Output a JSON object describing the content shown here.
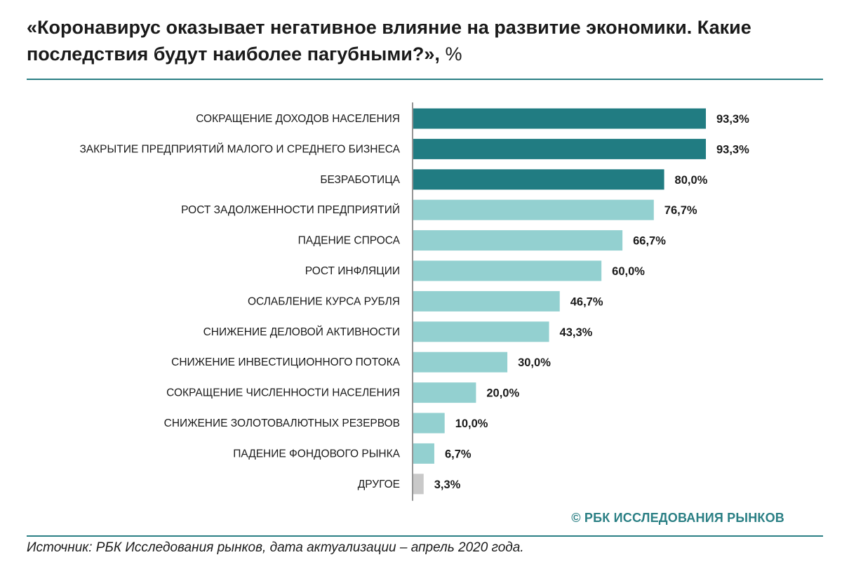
{
  "header": {
    "title": "«Коронавирус оказывает негативное влияние на развитие экономики. Какие последствия будут наиболее пагубными?»,",
    "unit": "%"
  },
  "chart_data": {
    "type": "bar",
    "orientation": "horizontal",
    "title": "«Коронавирус оказывает негативное влияние на развитие экономики. Какие последствия будут наиболее пагубными?», %",
    "xlim": [
      0,
      100
    ],
    "grid": false,
    "categories": [
      "СОКРАЩЕНИЕ ДОХОДОВ НАСЕЛЕНИЯ",
      "ЗАКРЫТИЕ ПРЕДПРИЯТИЙ МАЛОГО И СРЕДНЕГО БИЗНЕСА",
      "БЕЗРАБОТИЦА",
      "РОСТ ЗАДОЛЖЕННОСТИ ПРЕДПРИЯТИЙ",
      "ПАДЕНИЕ СПРОСА",
      "РОСТ ИНФЛЯЦИИ",
      "ОСЛАБЛЕНИЕ КУРСА РУБЛЯ",
      "СНИЖЕНИЕ ДЕЛОВОЙ АКТИВНОСТИ",
      "СНИЖЕНИЕ ИНВЕСТИЦИОННОГО ПОТОКА",
      "СОКРАЩЕНИЕ ЧИСЛЕННОСТИ НАСЕЛЕНИЯ",
      "СНИЖЕНИЕ ЗОЛОТОВАЛЮТНЫХ РЕЗЕРВОВ",
      "ПАДЕНИЕ ФОНДОВОГО РЫНКА",
      "ДРУГОЕ"
    ],
    "values": [
      93.3,
      93.3,
      80.0,
      76.7,
      66.7,
      60.0,
      46.7,
      43.3,
      30.0,
      20.0,
      10.0,
      6.7,
      3.3
    ],
    "value_labels": [
      "93,3%",
      "93,3%",
      "80,0%",
      "76,7%",
      "66,7%",
      "60,0%",
      "46,7%",
      "43,3%",
      "30,0%",
      "20,0%",
      "10,0%",
      "6,7%",
      "3,3%"
    ],
    "bar_groups": [
      "top",
      "top",
      "top",
      "other",
      "other",
      "other",
      "other",
      "other",
      "other",
      "other",
      "other",
      "other",
      "misc"
    ],
    "colors": {
      "top": "#217c82",
      "other": "#93d0d0",
      "misc": "#c9c9c9",
      "axis": "#4d4d4d",
      "text": "#1a1a1a"
    }
  },
  "footer": {
    "credit": "© РБК ИССЛЕДОВАНИЯ РЫНКОВ",
    "source": "Источник: РБК Исследования рынков, дата актуализации – апрель 2020 года."
  }
}
